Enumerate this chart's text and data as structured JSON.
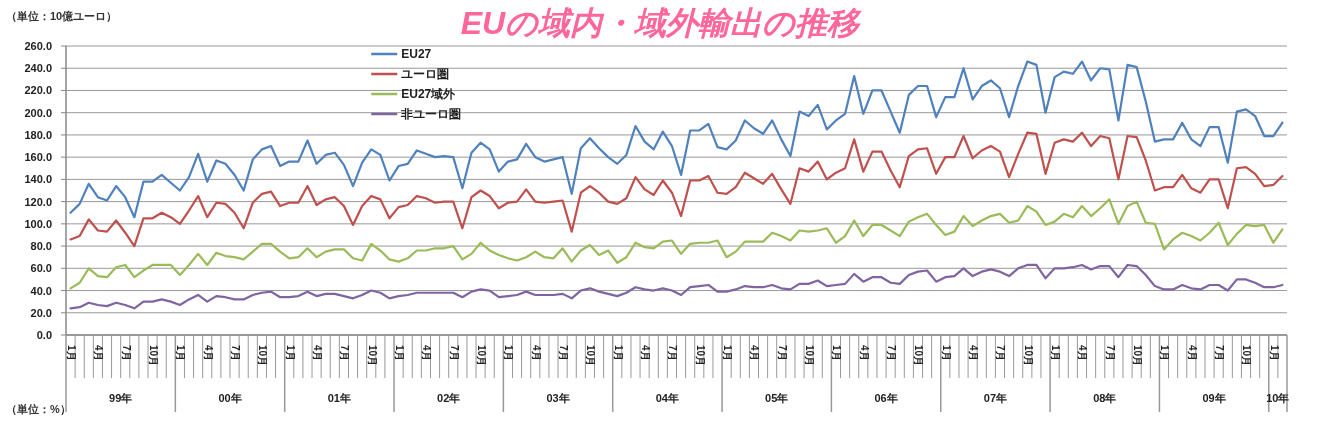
{
  "chart_data": {
    "type": "line",
    "title": "EUの域内・域外輸出の推移",
    "annotations": [
      "（単位：10億ユーロ）",
      "（単位：%）",
      "99年",
      "00年",
      "01年",
      "02年",
      "03年",
      "04年",
      "05年",
      "06年",
      "07年",
      "08年",
      "09年",
      "10年"
    ],
    "categories": [
      "1月",
      null,
      null,
      "4月",
      null,
      null,
      "7月",
      null,
      null,
      "10月",
      null,
      null,
      "1月",
      null,
      null,
      "4月",
      null,
      null,
      "7月",
      null,
      null,
      "10月",
      null,
      null,
      "1月",
      null,
      null,
      "4月",
      null,
      null,
      "7月",
      null,
      null,
      "10月",
      null,
      null,
      "1月",
      null,
      null,
      "4月",
      null,
      null,
      "7月",
      null,
      null,
      "10月",
      null,
      null,
      "1月",
      null,
      null,
      "4月",
      null,
      null,
      "7月",
      null,
      null,
      "10月",
      null,
      null,
      "1月",
      null,
      null,
      "4月",
      null,
      null,
      "7月",
      null,
      null,
      "10月",
      null,
      null,
      "1月",
      null,
      null,
      "4月",
      null,
      null,
      "7月",
      null,
      null,
      "10月",
      null,
      null,
      "1月",
      null,
      null,
      "4月",
      null,
      null,
      "7月",
      null,
      null,
      "10月",
      null,
      null,
      "1月",
      null,
      null,
      "4月",
      null,
      null,
      "7月",
      null,
      null,
      "10月",
      null,
      null,
      "1月",
      null,
      null,
      "4月",
      null,
      null,
      "7月",
      null,
      null,
      "10月",
      null,
      null,
      "1月",
      null,
      null,
      "4月",
      null,
      null,
      "7月",
      null,
      null,
      "10月",
      null,
      null,
      "1月",
      null
    ],
    "series": [
      {
        "name": "EU27",
        "color": "#4f81bd",
        "values": [
          110,
          118,
          136,
          124,
          121,
          134,
          124,
          106,
          138,
          138,
          144,
          137,
          130,
          142,
          163,
          138,
          157,
          154,
          144,
          130,
          158,
          167,
          170,
          152,
          156,
          156,
          175,
          154,
          162,
          164,
          153,
          134,
          155,
          167,
          162,
          139,
          152,
          154,
          166,
          163,
          160,
          161,
          160,
          132,
          164,
          173,
          167,
          147,
          156,
          158,
          172,
          160,
          156,
          158,
          160,
          127,
          168,
          177,
          168,
          160,
          154,
          162,
          188,
          174,
          167,
          183,
          170,
          144,
          184,
          184,
          190,
          169,
          167,
          175,
          193,
          186,
          181,
          193,
          176,
          161,
          201,
          197,
          207,
          185,
          193,
          199,
          233,
          199,
          220,
          220,
          201,
          182,
          216,
          224,
          224,
          196,
          214,
          214,
          240,
          212,
          224,
          229,
          222,
          196,
          224,
          246,
          243,
          200,
          232,
          237,
          235,
          246,
          229,
          240,
          239,
          193,
          243,
          241,
          210,
          174,
          176,
          176,
          191,
          176,
          170,
          187,
          187,
          155,
          201,
          203,
          197,
          179,
          179,
          191
        ]
      },
      {
        "name": "ユーロ圏",
        "color": "#c0504d",
        "values": [
          86,
          89,
          104,
          94,
          93,
          103,
          92,
          80,
          105,
          105,
          110,
          106,
          100,
          112,
          125,
          106,
          119,
          118,
          110,
          96,
          119,
          127,
          129,
          116,
          119,
          119,
          134,
          117,
          122,
          124,
          116,
          99,
          116,
          125,
          122,
          105,
          115,
          117,
          125,
          123,
          119,
          120,
          120,
          96,
          124,
          130,
          125,
          114,
          119,
          120,
          131,
          120,
          119,
          120,
          121,
          93,
          128,
          134,
          128,
          120,
          118,
          123,
          142,
          131,
          126,
          139,
          128,
          107,
          139,
          139,
          143,
          128,
          127,
          133,
          146,
          141,
          136,
          145,
          131,
          118,
          150,
          147,
          156,
          140,
          146,
          150,
          176,
          147,
          165,
          165,
          148,
          133,
          161,
          167,
          168,
          145,
          160,
          160,
          179,
          159,
          166,
          170,
          165,
          142,
          163,
          182,
          181,
          145,
          173,
          176,
          174,
          182,
          170,
          179,
          177,
          140,
          179,
          178,
          157,
          130,
          133,
          133,
          144,
          132,
          128,
          140,
          140,
          114,
          150,
          151,
          145,
          134,
          135,
          143
        ]
      },
      {
        "name": "EU27域外",
        "color": "#9bbb59",
        "values": [
          42,
          47,
          60,
          53,
          52,
          61,
          63,
          52,
          58,
          63,
          63,
          63,
          54,
          63,
          73,
          63,
          74,
          71,
          70,
          68,
          75,
          82,
          82,
          75,
          69,
          70,
          78,
          70,
          75,
          77,
          77,
          69,
          67,
          82,
          76,
          68,
          66,
          69,
          76,
          76,
          78,
          78,
          80,
          68,
          73,
          83,
          76,
          72,
          69,
          67,
          70,
          75,
          70,
          69,
          78,
          66,
          76,
          81,
          72,
          76,
          65,
          70,
          83,
          79,
          78,
          84,
          85,
          73,
          82,
          83,
          83,
          85,
          70,
          75,
          84,
          84,
          84,
          92,
          89,
          85,
          94,
          93,
          94,
          96,
          83,
          89,
          103,
          89,
          99,
          99,
          94,
          89,
          102,
          106,
          109,
          99,
          90,
          93,
          107,
          98,
          103,
          107,
          109,
          101,
          103,
          116,
          111,
          99,
          102,
          109,
          106,
          116,
          107,
          114,
          122,
          100,
          116,
          120,
          101,
          100,
          77,
          86,
          92,
          89,
          85,
          92,
          101,
          81,
          91,
          99,
          98,
          99,
          83,
          95
        ]
      },
      {
        "name": "非ユーロ圏",
        "color": "#8064a2",
        "values": [
          24,
          25,
          29,
          27,
          26,
          29,
          27,
          24,
          30,
          30,
          32,
          30,
          27,
          32,
          36,
          30,
          35,
          34,
          32,
          32,
          36,
          38,
          39,
          34,
          34,
          35,
          39,
          35,
          37,
          37,
          35,
          33,
          36,
          40,
          38,
          33,
          35,
          36,
          38,
          38,
          38,
          38,
          38,
          34,
          39,
          41,
          40,
          34,
          35,
          36,
          39,
          36,
          36,
          36,
          37,
          33,
          40,
          42,
          39,
          37,
          35,
          38,
          43,
          41,
          40,
          42,
          40,
          36,
          43,
          44,
          45,
          39,
          39,
          41,
          44,
          43,
          43,
          45,
          42,
          41,
          46,
          46,
          49,
          44,
          45,
          46,
          55,
          48,
          52,
          52,
          47,
          46,
          54,
          57,
          58,
          48,
          52,
          53,
          60,
          53,
          57,
          59,
          57,
          53,
          60,
          63,
          63,
          51,
          60,
          60,
          61,
          63,
          59,
          62,
          62,
          52,
          63,
          62,
          54,
          44,
          41,
          41,
          45,
          42,
          41,
          45,
          45,
          40,
          50,
          50,
          47,
          43,
          43,
          45
        ]
      }
    ],
    "ylim": [
      0,
      260
    ],
    "yticks": [
      {
        "value": 0,
        "label": "0.0"
      },
      {
        "value": 20,
        "label": "20.0"
      },
      {
        "value": 40,
        "label": "40.0"
      },
      {
        "value": 60,
        "label": "60.0"
      },
      {
        "value": 80,
        "label": "80.0"
      },
      {
        "value": 100,
        "label": "100.0"
      },
      {
        "value": 120,
        "label": "120.0"
      },
      {
        "value": 140,
        "label": "140.0"
      },
      {
        "value": 160,
        "label": "160.0"
      },
      {
        "value": 180,
        "label": "180.0"
      },
      {
        "value": 200,
        "label": "200.0"
      },
      {
        "value": 220,
        "label": "220.0"
      },
      {
        "value": 240,
        "label": "240.0"
      },
      {
        "value": 260,
        "label": "260.0"
      }
    ],
    "grid": "y",
    "legend": "top left"
  }
}
